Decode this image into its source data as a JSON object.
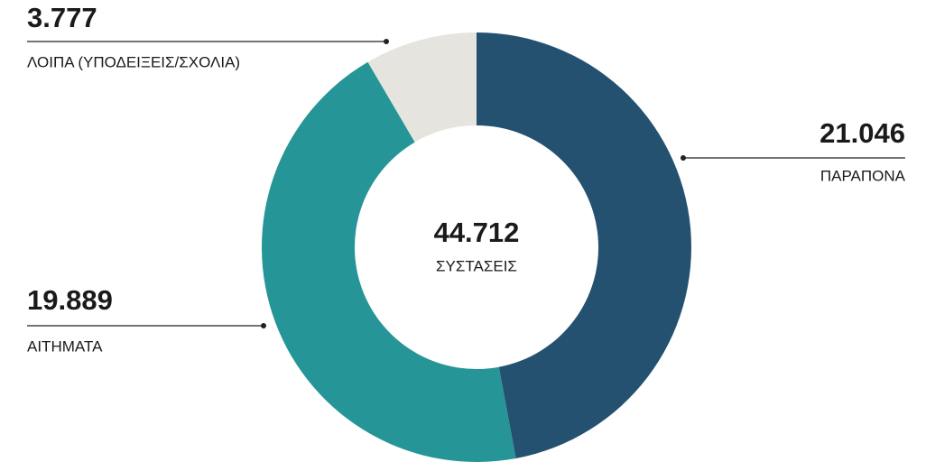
{
  "chart_data": {
    "type": "donut",
    "categories": [
      "ΠΑΡΑΠΟΝΑ",
      "ΑΙΤΗΜΑΤΑ",
      "ΛΟΙΠΑ (ΥΠΟΔΕΙΞΕΙΣ/ΣΧΟΛΙΑ)"
    ],
    "values": [
      21046,
      19889,
      3777
    ],
    "value_labels": [
      "21.046",
      "19.889",
      "3.777"
    ],
    "colors": [
      "#245170",
      "#269597",
      "#e5e4df"
    ],
    "total_label": "44.712",
    "total_text": "ΣΥΣΤΑΣΕΙΣ"
  }
}
